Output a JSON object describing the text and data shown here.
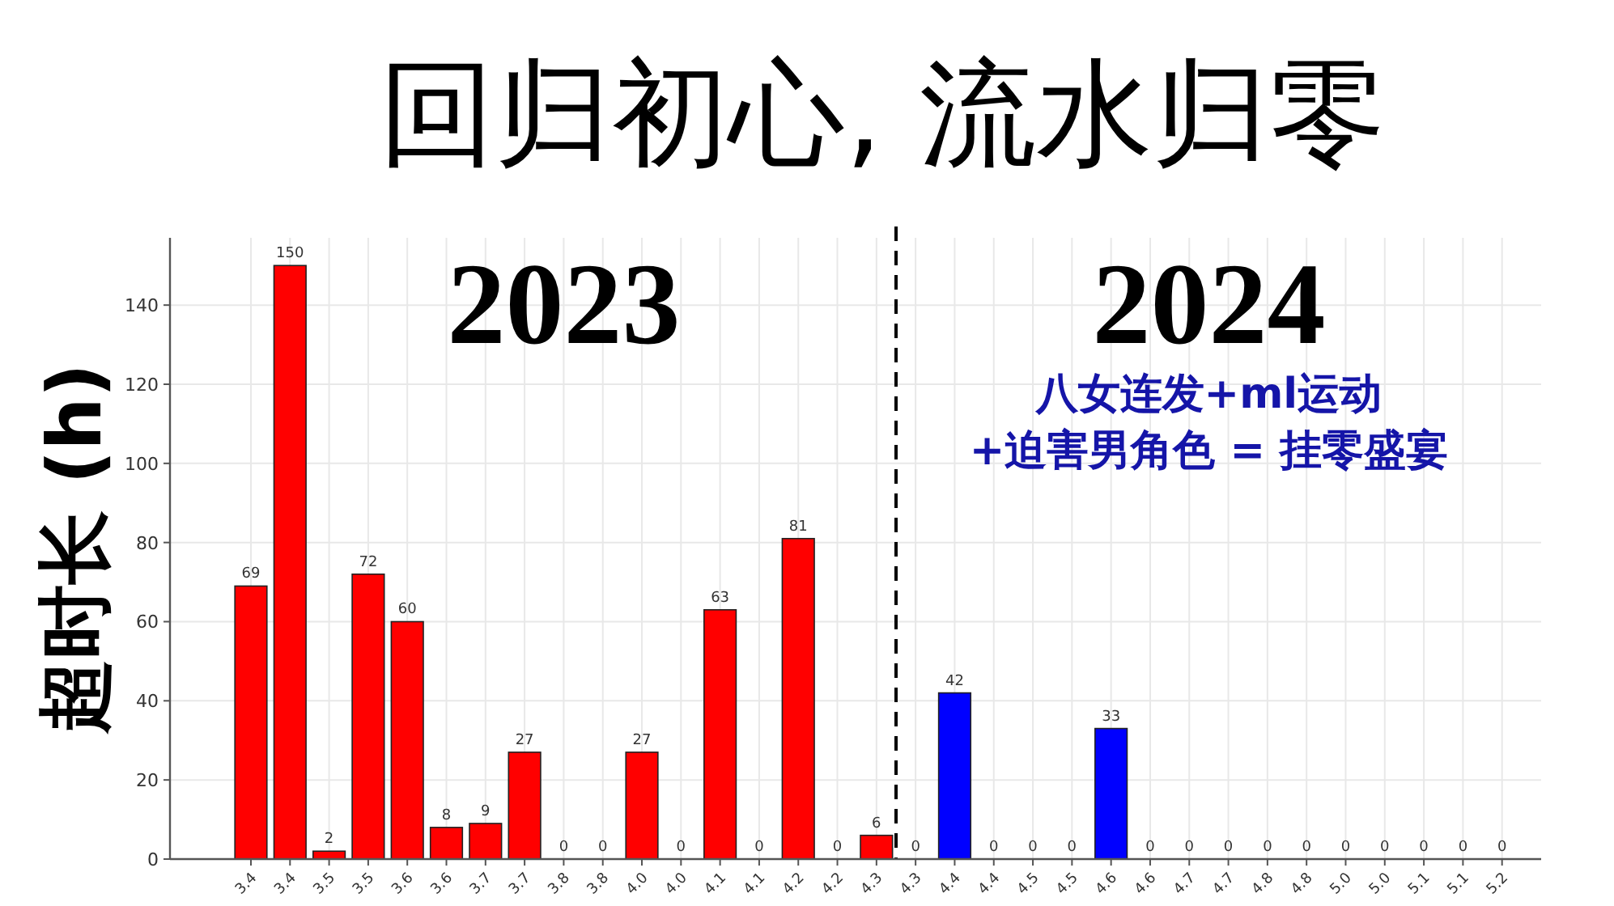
{
  "chart_data": {
    "type": "bar",
    "title": "回归初心, 流水归零",
    "ylabel": "超时长 (h)",
    "categories": [
      "3.4",
      "3.4",
      "3.5",
      "3.5",
      "3.6",
      "3.6",
      "3.7",
      "3.7",
      "3.8",
      "3.8",
      "4.0",
      "4.0",
      "4.1",
      "4.1",
      "4.2",
      "4.2",
      "4.3",
      "4.3",
      "4.4",
      "4.4",
      "4.5",
      "4.5",
      "4.6",
      "4.6",
      "4.7",
      "4.7",
      "4.8",
      "4.8",
      "5.0",
      "5.0",
      "5.1",
      "5.1",
      "5.2"
    ],
    "series": [
      {
        "name": "2023",
        "color": "#ff0000",
        "values": [
          69,
          150,
          2,
          72,
          60,
          8,
          9,
          27,
          0,
          0,
          27,
          0,
          63,
          0,
          81,
          0,
          6,
          null,
          null,
          null,
          null,
          null,
          null,
          null,
          null,
          null,
          null,
          null,
          null,
          null,
          null,
          null,
          null
        ]
      },
      {
        "name": "2024",
        "color": "#0000ff",
        "values": [
          null,
          null,
          null,
          null,
          null,
          null,
          null,
          null,
          null,
          null,
          null,
          null,
          null,
          null,
          null,
          null,
          null,
          0,
          42,
          0,
          0,
          0,
          33,
          0,
          0,
          0,
          0,
          0,
          0,
          0,
          0,
          0,
          0
        ]
      }
    ],
    "annotations": [
      "八女连发+ml运动",
      "+迫害男角色 = 挂零盛宴"
    ],
    "ylim": [
      0,
      157
    ],
    "yticks": [
      0,
      20,
      40,
      60,
      80,
      100,
      120,
      140
    ],
    "ref_lines": [
      {
        "axis": "x",
        "value": "4.3",
        "color": "#000000",
        "line_style": "dashed"
      }
    ],
    "grid": true,
    "data_labels": true
  }
}
